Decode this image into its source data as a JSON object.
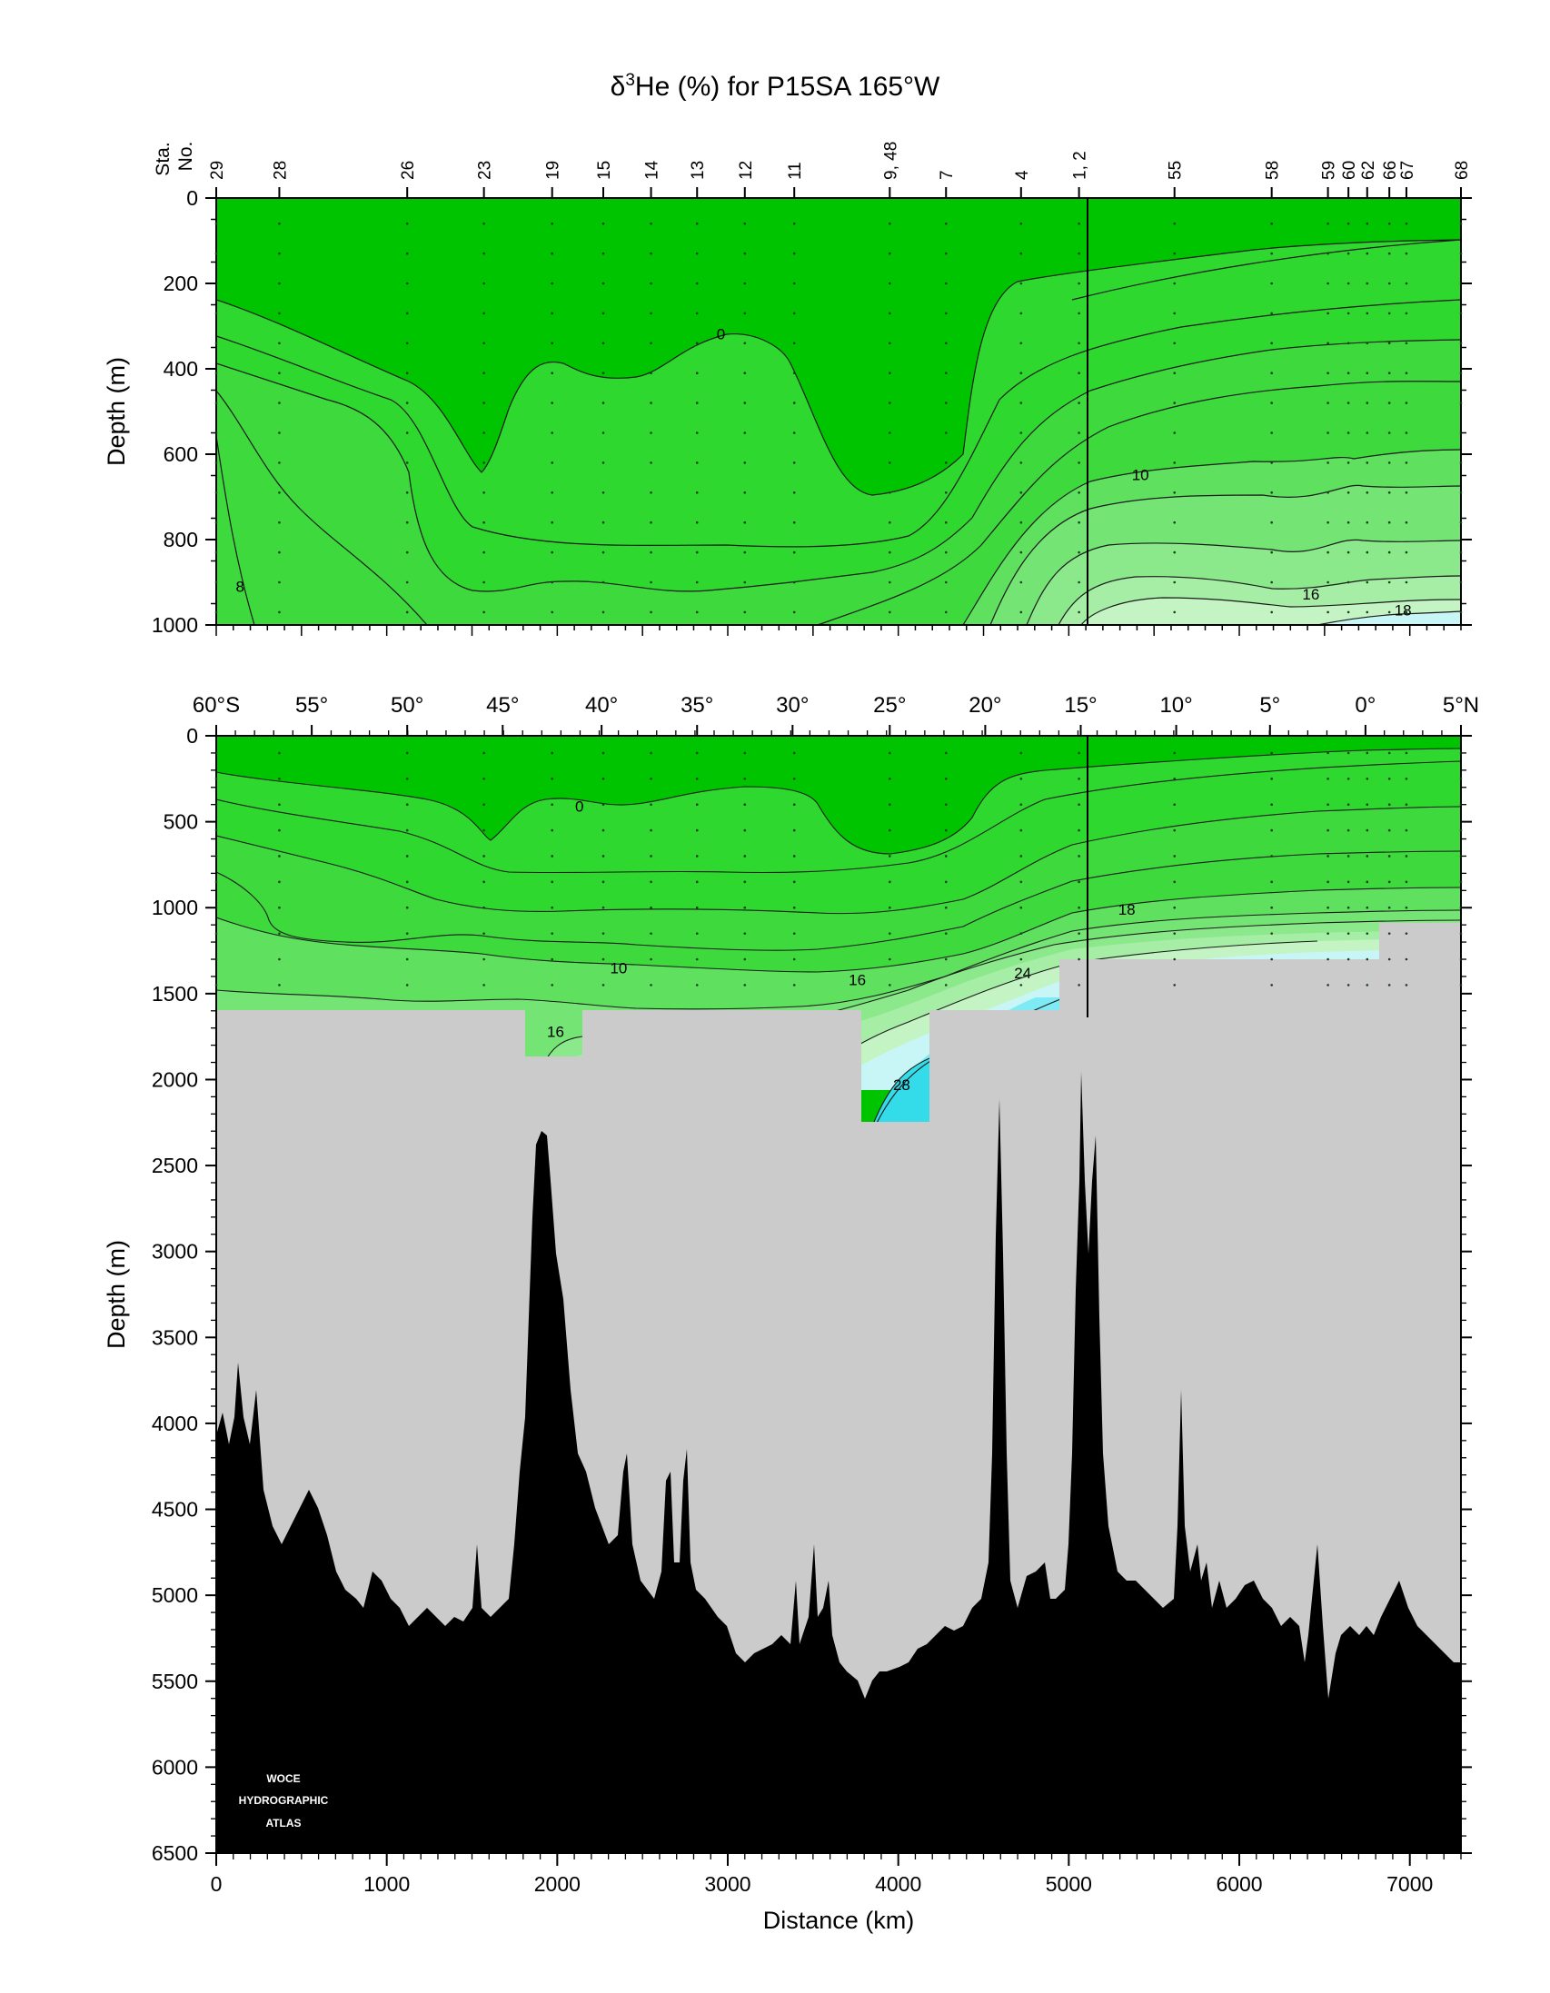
{
  "title": {
    "delta": "δ",
    "sup": "3",
    "rest": "He (%) for P15SA 165°W"
  },
  "watermark": [
    "WOCE",
    "HYDROGRAPHIC",
    "ATLAS"
  ],
  "colors": {
    "c_lt0": "#00c400",
    "c_0_4": "#2ed82e",
    "c_4_8": "#3dd93d",
    "c_8_10": "#5fe05f",
    "c_10_12": "#74e474",
    "c_12_14": "#8be98b",
    "c_14_16": "#a6eea6",
    "c_16_18": "#c4f4c4",
    "c_18_20": "#c8f6f6",
    "c_20_24": "#a8f0f6",
    "c_24_28": "#7eeaf4",
    "c_gt28": "#33dce8",
    "nodata": "#cbcbcb",
    "bottom": "#000000"
  },
  "chart_data": [
    {
      "type": "heatmap",
      "panel": "upper",
      "xlabel": "",
      "ylabel": "Depth (m)",
      "ylim": [
        1000,
        0
      ],
      "xlim": [
        0,
        7300
      ],
      "yticks": [
        0,
        200,
        400,
        600,
        800,
        1000
      ],
      "station_axis_label": [
        "Sta.",
        "No."
      ],
      "stations": [
        {
          "label": "29",
          "x": 0
        },
        {
          "label": "28",
          "x": 370
        },
        {
          "label": "26",
          "x": 1120
        },
        {
          "label": "23",
          "x": 1570
        },
        {
          "label": "19",
          "x": 1970
        },
        {
          "label": "15",
          "x": 2270
        },
        {
          "label": "14",
          "x": 2550
        },
        {
          "label": "13",
          "x": 2820
        },
        {
          "label": "12",
          "x": 3100
        },
        {
          "label": "11",
          "x": 3390
        },
        {
          "label": "9, 48",
          "x": 3950
        },
        {
          "label": "7",
          "x": 4280
        },
        {
          "label": "4",
          "x": 4720
        },
        {
          "label": "1, 2",
          "x": 5060
        },
        {
          "label": "55",
          "x": 5620
        },
        {
          "label": "58",
          "x": 6190
        },
        {
          "label": "59",
          "x": 6520
        },
        {
          "label": "60",
          "x": 6640
        },
        {
          "label": "62",
          "x": 6750
        },
        {
          "label": "66",
          "x": 6880
        },
        {
          "label": "67",
          "x": 6980
        },
        {
          "label": "68",
          "x": 7300
        }
      ],
      "contour_labels": [
        {
          "text": "0",
          "x": 2960,
          "y": 318
        },
        {
          "text": "10",
          "x": 5420,
          "y": 648
        },
        {
          "text": "16",
          "x": 6420,
          "y": 928
        },
        {
          "text": "18",
          "x": 6960,
          "y": 965
        },
        {
          "text": "8",
          "x": 140,
          "y": 910
        }
      ]
    },
    {
      "type": "heatmap",
      "panel": "lower",
      "xlabel": "Distance (km)",
      "ylabel": "Depth (m)",
      "ylim": [
        6500,
        0
      ],
      "xlim": [
        0,
        7300
      ],
      "xticks": [
        0,
        1000,
        2000,
        3000,
        4000,
        5000,
        6000,
        7000
      ],
      "yticks": [
        0,
        500,
        1000,
        1500,
        2000,
        2500,
        3000,
        3500,
        4000,
        4500,
        5000,
        5500,
        6000,
        6500
      ],
      "latitude_labels": [
        {
          "text": "60°S",
          "x": 0
        },
        {
          "text": "55°",
          "x": 560
        },
        {
          "text": "50°",
          "x": 1120
        },
        {
          "text": "45°",
          "x": 1680
        },
        {
          "text": "40°",
          "x": 2260
        },
        {
          "text": "35°",
          "x": 2820
        },
        {
          "text": "30°",
          "x": 3380
        },
        {
          "text": "25°",
          "x": 3950
        },
        {
          "text": "20°",
          "x": 4510
        },
        {
          "text": "15°",
          "x": 5070
        },
        {
          "text": "10°",
          "x": 5630
        },
        {
          "text": "5°",
          "x": 6180
        },
        {
          "text": "0°",
          "x": 6740
        },
        {
          "text": "5°N",
          "x": 7300
        }
      ],
      "contour_labels": [
        {
          "text": "0",
          "x": 2130,
          "y": 410
        },
        {
          "text": "10",
          "x": 2360,
          "y": 1350
        },
        {
          "text": "16",
          "x": 1990,
          "y": 1720
        },
        {
          "text": "16",
          "x": 3760,
          "y": 1420
        },
        {
          "text": "24",
          "x": 4730,
          "y": 1380
        },
        {
          "text": "18",
          "x": 5340,
          "y": 1010
        },
        {
          "text": "28",
          "x": 4020,
          "y": 2030
        }
      ]
    }
  ]
}
